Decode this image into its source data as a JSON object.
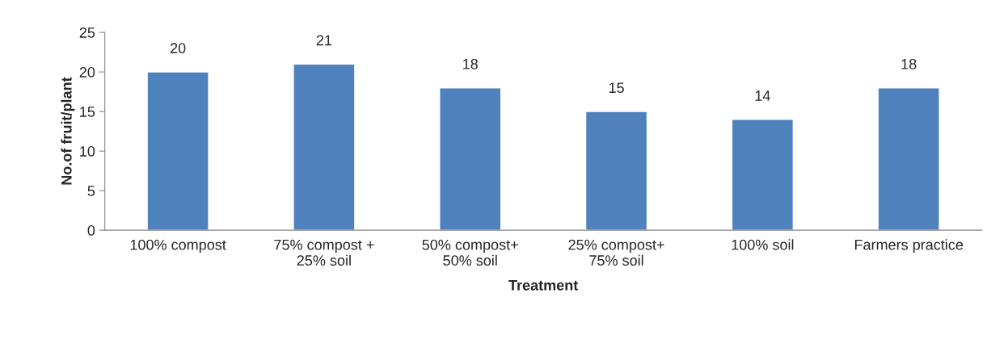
{
  "chart_data": {
    "type": "bar",
    "categories": [
      "100% compost",
      "75% compost +\n25% soil",
      "50% compost+\n50% soil",
      "25% compost+\n75% soil",
      "100% soil",
      "Farmers practice"
    ],
    "values": [
      20,
      21,
      18,
      15,
      14,
      18
    ],
    "color": "#4f81bd",
    "xlabel": "Treatment",
    "ylabel": "No.of fruit/plant",
    "ylim": [
      0,
      25
    ],
    "yticks": [
      0,
      5,
      10,
      15,
      20,
      25
    ],
    "data_labels": true,
    "grid": false,
    "legend": false
  }
}
